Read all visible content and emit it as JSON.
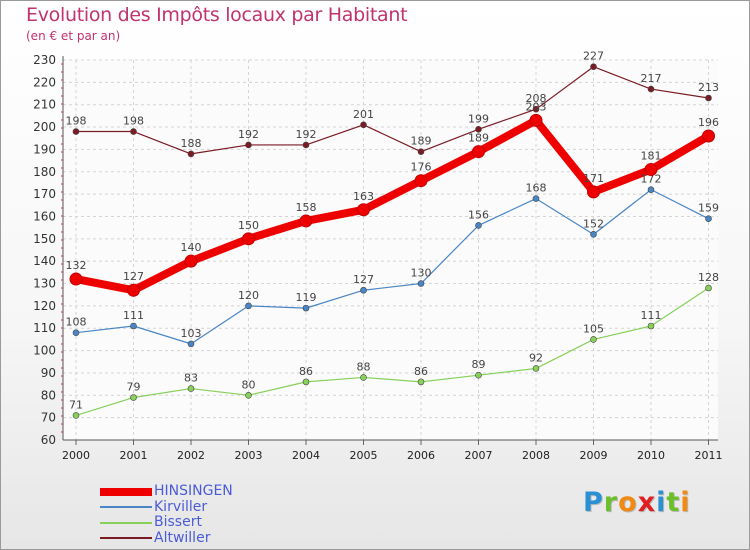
{
  "chart_data": {
    "type": "line",
    "title": "Evolution des Impôts locaux par Habitant",
    "subtitle": "(en € et par an)",
    "xlabel": "",
    "ylabel": "",
    "x": [
      "2000",
      "2001",
      "2002",
      "2003",
      "2004",
      "2005",
      "2006",
      "2007",
      "2008",
      "2009",
      "2010",
      "2011"
    ],
    "ylim": [
      60,
      230
    ],
    "yticks": [
      60,
      70,
      80,
      90,
      100,
      110,
      120,
      130,
      140,
      150,
      160,
      170,
      180,
      190,
      200,
      210,
      220,
      230
    ],
    "grid": true,
    "legend_position": "bottom-left",
    "series": [
      {
        "name": "Altwiller",
        "color": "#7b1b24",
        "values": [
          198,
          198,
          188,
          192,
          192,
          201,
          189,
          199,
          208,
          227,
          217,
          213
        ]
      },
      {
        "name": "Kirviller",
        "color": "#4a86c6",
        "values": [
          108,
          111,
          103,
          120,
          119,
          127,
          130,
          156,
          168,
          152,
          172,
          159
        ]
      },
      {
        "name": "Bissert",
        "color": "#88d05a",
        "values": [
          71,
          79,
          83,
          80,
          86,
          88,
          86,
          89,
          92,
          105,
          111,
          128
        ]
      },
      {
        "name": "HINSINGEN",
        "color": "#ee0000",
        "values": [
          132,
          127,
          140,
          150,
          158,
          163,
          176,
          189,
          203,
          171,
          181,
          196
        ]
      }
    ]
  },
  "legend": [
    {
      "name": "HINSINGEN",
      "color": "#ee0000"
    },
    {
      "name": "Kirviller",
      "color": "#4a86c6"
    },
    {
      "name": "Bissert",
      "color": "#88d05a"
    },
    {
      "name": "Altwiller",
      "color": "#7b1b24"
    }
  ],
  "logo": {
    "letters": [
      "P",
      "r",
      "o",
      "x",
      "i",
      "t",
      "i"
    ],
    "colors": [
      "#2b8fd4",
      "#6cbf2a",
      "#f08a12",
      "#e02020",
      "#2b8fd4",
      "#6cbf2a",
      "#f08a12"
    ]
  }
}
